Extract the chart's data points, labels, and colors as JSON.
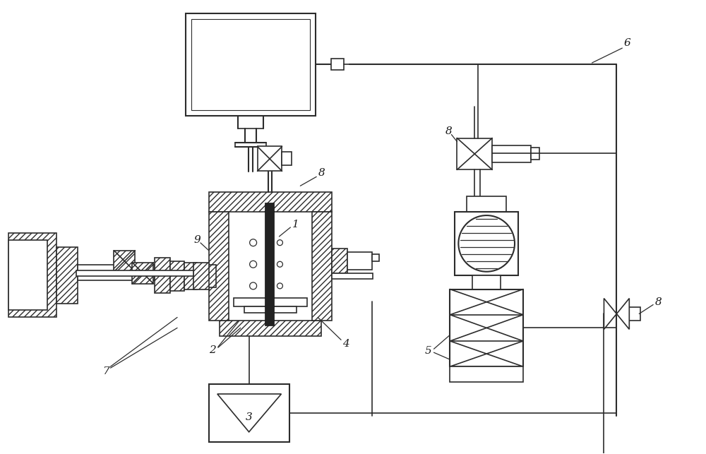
{
  "bg_color": "#ffffff",
  "line_color": "#2c2c2c",
  "label_color": "#1a1a1a",
  "figure_width": 10.0,
  "figure_height": 6.43,
  "dpi": 100
}
